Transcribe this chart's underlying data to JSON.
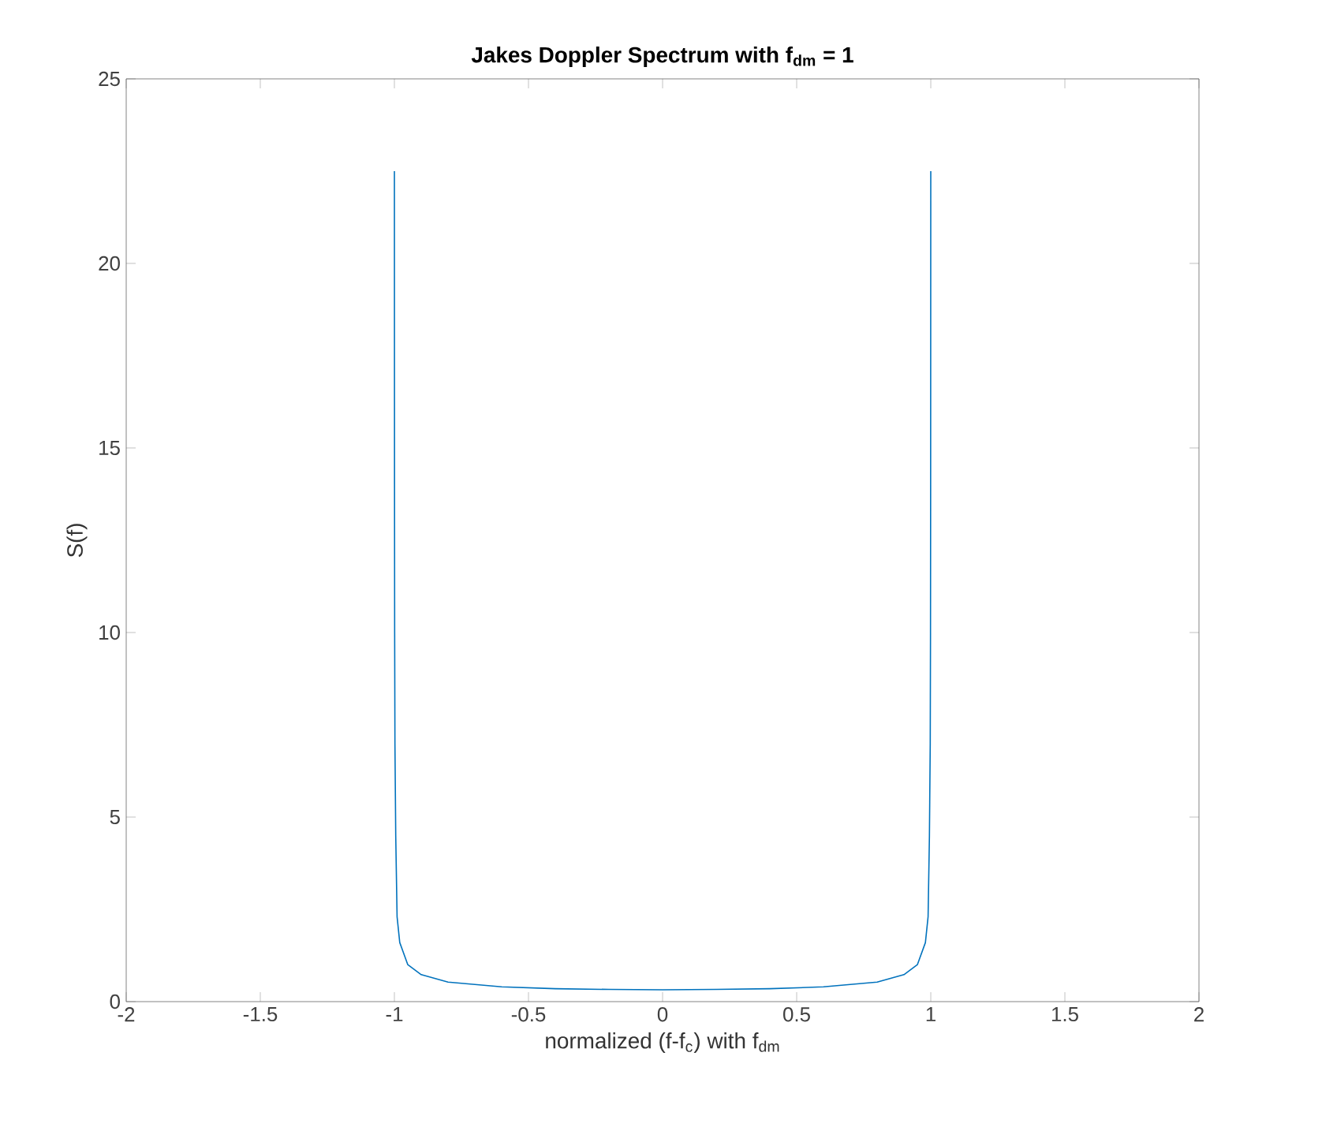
{
  "chart_data": {
    "type": "line",
    "title": "**Jakes Doppler Spectrum with f$_{dm}$ = 1**",
    "xlabel": "normalized (f-f$_{c}$) with f$_{dm}$",
    "ylabel": "S(f)",
    "x": [
      -1,
      -0.9995,
      -0.999,
      -0.998,
      -0.995,
      -0.99,
      -0.98,
      -0.95,
      -0.9,
      -0.8,
      -0.6,
      -0.4,
      -0.2,
      0,
      0.2,
      0.4,
      0.6,
      0.8,
      0.9,
      0.95,
      0.98,
      0.99,
      0.995,
      0.998,
      0.999,
      0.9995,
      1
    ],
    "series": [
      {
        "color": "#0072bd",
        "values": [
          22.5,
          14,
          10,
          7,
          4.5,
          2.3,
          1.6,
          1.0,
          0.73,
          0.53,
          0.4,
          0.35,
          0.33,
          0.32,
          0.33,
          0.35,
          0.4,
          0.53,
          0.73,
          1.0,
          1.6,
          2.3,
          4.5,
          7,
          10,
          14,
          22.5
        ]
      }
    ],
    "xlim": [
      -2,
      2
    ],
    "ylim": [
      0,
      25
    ],
    "xticks": [
      -2,
      -1.5,
      -1,
      -0.5,
      0,
      0.5,
      1,
      1.5,
      2
    ],
    "yticks": [
      0,
      5,
      10,
      15,
      20,
      25
    ]
  }
}
